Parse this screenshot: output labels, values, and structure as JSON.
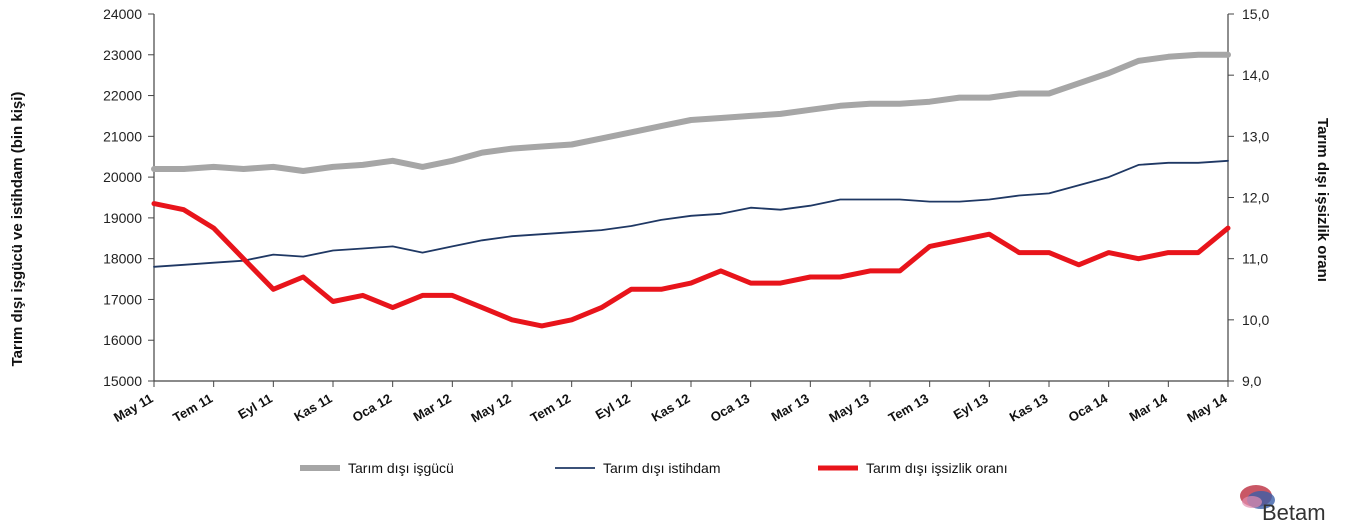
{
  "chart_data": {
    "type": "line",
    "x": [
      "May 11",
      "Haz 11",
      "Tem 11",
      "Agu 11",
      "Eyl 11",
      "Eki 11",
      "Kas 11",
      "Ara 11",
      "Oca 12",
      "Sub 12",
      "Mar 12",
      "Nis 12",
      "May 12",
      "Haz 12",
      "Tem 12",
      "Agu 12",
      "Eyl 12",
      "Eki 12",
      "Kas 12",
      "Ara 12",
      "Oca 13",
      "Sub 13",
      "Mar 13",
      "Nis 13",
      "May 13",
      "Haz 13",
      "Tem 13",
      "Agu 13",
      "Eyl 13",
      "Eki 13",
      "Kas 13",
      "Ara 13",
      "Oca 14",
      "Sub 14",
      "Mar 14",
      "Nis 14",
      "May 14"
    ],
    "xticks": [
      "May 11",
      "Tem 11",
      "Eyl 11",
      "Kas 11",
      "Oca 12",
      "Mar 12",
      "May 12",
      "Tem 12",
      "Eyl 12",
      "Kas 12",
      "Oca 13",
      "Mar 13",
      "May 13",
      "Tem 13",
      "Eyl 13",
      "Kas 13",
      "Oca 14",
      "Mar 14",
      "May 14"
    ],
    "y_left": {
      "label": "Tarım dışı işgücü ve istihdam (bin kişi)",
      "lim": [
        15000,
        24000
      ],
      "ticks": [
        "15000",
        "16000",
        "17000",
        "18000",
        "19000",
        "20000",
        "21000",
        "22000",
        "23000",
        "24000"
      ]
    },
    "y_right": {
      "label": "Tarım dışı işsizlik oranı",
      "lim": [
        9.0,
        15.0
      ],
      "ticks": [
        "9,0",
        "10,0",
        "11,0",
        "12,0",
        "13,0",
        "14,0",
        "15,0"
      ]
    },
    "series": [
      {
        "name": "Tarım dışı işgücü",
        "axis": "left",
        "color": "#a6a6a6",
        "values": [
          20200,
          20200,
          20250,
          20200,
          20250,
          20150,
          20250,
          20300,
          20400,
          20250,
          20400,
          20600,
          20700,
          20750,
          20800,
          20950,
          21100,
          21250,
          21400,
          21450,
          21500,
          21550,
          21650,
          21750,
          21800,
          21800,
          21850,
          21950,
          21950,
          22050,
          22050,
          22300,
          22550,
          22850,
          22950,
          23000,
          23000
        ]
      },
      {
        "name": "Tarım dışı istihdam",
        "axis": "left",
        "color": "#1f3864",
        "values": [
          17800,
          17850,
          17900,
          17950,
          18100,
          18050,
          18200,
          18250,
          18300,
          18150,
          18300,
          18450,
          18550,
          18600,
          18650,
          18700,
          18800,
          18950,
          19050,
          19100,
          19250,
          19200,
          19300,
          19450,
          19450,
          19450,
          19400,
          19400,
          19450,
          19550,
          19600,
          19800,
          20000,
          20300,
          20350,
          20350,
          20400
        ]
      },
      {
        "name": "Tarım dışı işsizlik oranı",
        "axis": "right",
        "color": "#e8141b",
        "values": [
          11.9,
          11.8,
          11.5,
          11.0,
          10.5,
          10.7,
          10.3,
          10.4,
          10.2,
          10.4,
          10.4,
          10.2,
          10.0,
          9.9,
          10.0,
          10.2,
          10.5,
          10.5,
          10.6,
          10.8,
          10.6,
          10.6,
          10.7,
          10.7,
          10.8,
          10.8,
          11.2,
          11.3,
          11.4,
          11.1,
          11.1,
          10.9,
          11.1,
          11.0,
          11.1,
          11.1,
          11.5
        ]
      }
    ],
    "grid": false,
    "legend": "bottom"
  },
  "logo": {
    "text": "Betam"
  }
}
